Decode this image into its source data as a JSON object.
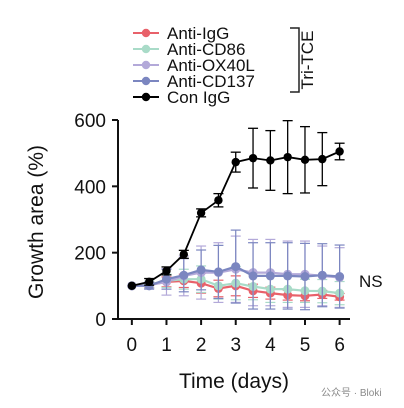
{
  "chart_data": {
    "type": "line",
    "xlabel": "Time (days)",
    "ylabel": "Growth area (%)",
    "xlim": [
      -0.4,
      6.3
    ],
    "ylim": [
      0,
      600
    ],
    "x_ticks": [
      "0",
      "1",
      "2",
      "3",
      "4",
      "5",
      "6"
    ],
    "y_ticks": [
      "0",
      "200",
      "400",
      "600"
    ],
    "legend_position": "top-left",
    "legend_group_label": "Tri-TCE",
    "annotation": "NS",
    "x": [
      0,
      0.5,
      1,
      1.5,
      2,
      2.5,
      3,
      3.5,
      4,
      4.5,
      5,
      5.5,
      6
    ],
    "series": [
      {
        "name": "Anti-IgG",
        "color": "#e8616a",
        "values": [
          100,
          103,
          112,
          115,
          108,
          92,
          100,
          85,
          78,
          72,
          70,
          74,
          67
        ],
        "errors": [
          0,
          8,
          15,
          20,
          30,
          25,
          30,
          20,
          18,
          15,
          15,
          12,
          10
        ]
      },
      {
        "name": "Anti-CD86",
        "color": "#a9dbc8",
        "values": [
          100,
          104,
          115,
          120,
          120,
          100,
          108,
          98,
          90,
          90,
          85,
          84,
          78
        ],
        "errors": [
          0,
          10,
          20,
          30,
          40,
          40,
          50,
          40,
          40,
          40,
          35,
          35,
          35
        ]
      },
      {
        "name": "Anti-OX40L",
        "color": "#b3a9d9",
        "values": [
          100,
          102,
          112,
          130,
          140,
          140,
          150,
          140,
          140,
          135,
          135,
          130,
          125
        ],
        "errors": [
          0,
          10,
          40,
          60,
          80,
          90,
          100,
          100,
          100,
          100,
          100,
          90,
          90
        ]
      },
      {
        "name": "Anti-CD137",
        "color": "#7b86c0",
        "values": [
          100,
          100,
          120,
          132,
          148,
          142,
          158,
          130,
          130,
          130,
          128,
          132,
          128
        ],
        "errors": [
          0,
          10,
          30,
          50,
          60,
          80,
          110,
          100,
          100,
          100,
          100,
          95,
          95
        ]
      },
      {
        "name": "Con IgG",
        "color": "#000000",
        "values": [
          100,
          112,
          145,
          195,
          320,
          358,
          473,
          485,
          478,
          488,
          480,
          482,
          505
        ],
        "errors": [
          0,
          10,
          12,
          12,
          12,
          20,
          30,
          90,
          90,
          110,
          100,
          80,
          25
        ]
      }
    ]
  },
  "watermark": "公众号 · Bloki"
}
